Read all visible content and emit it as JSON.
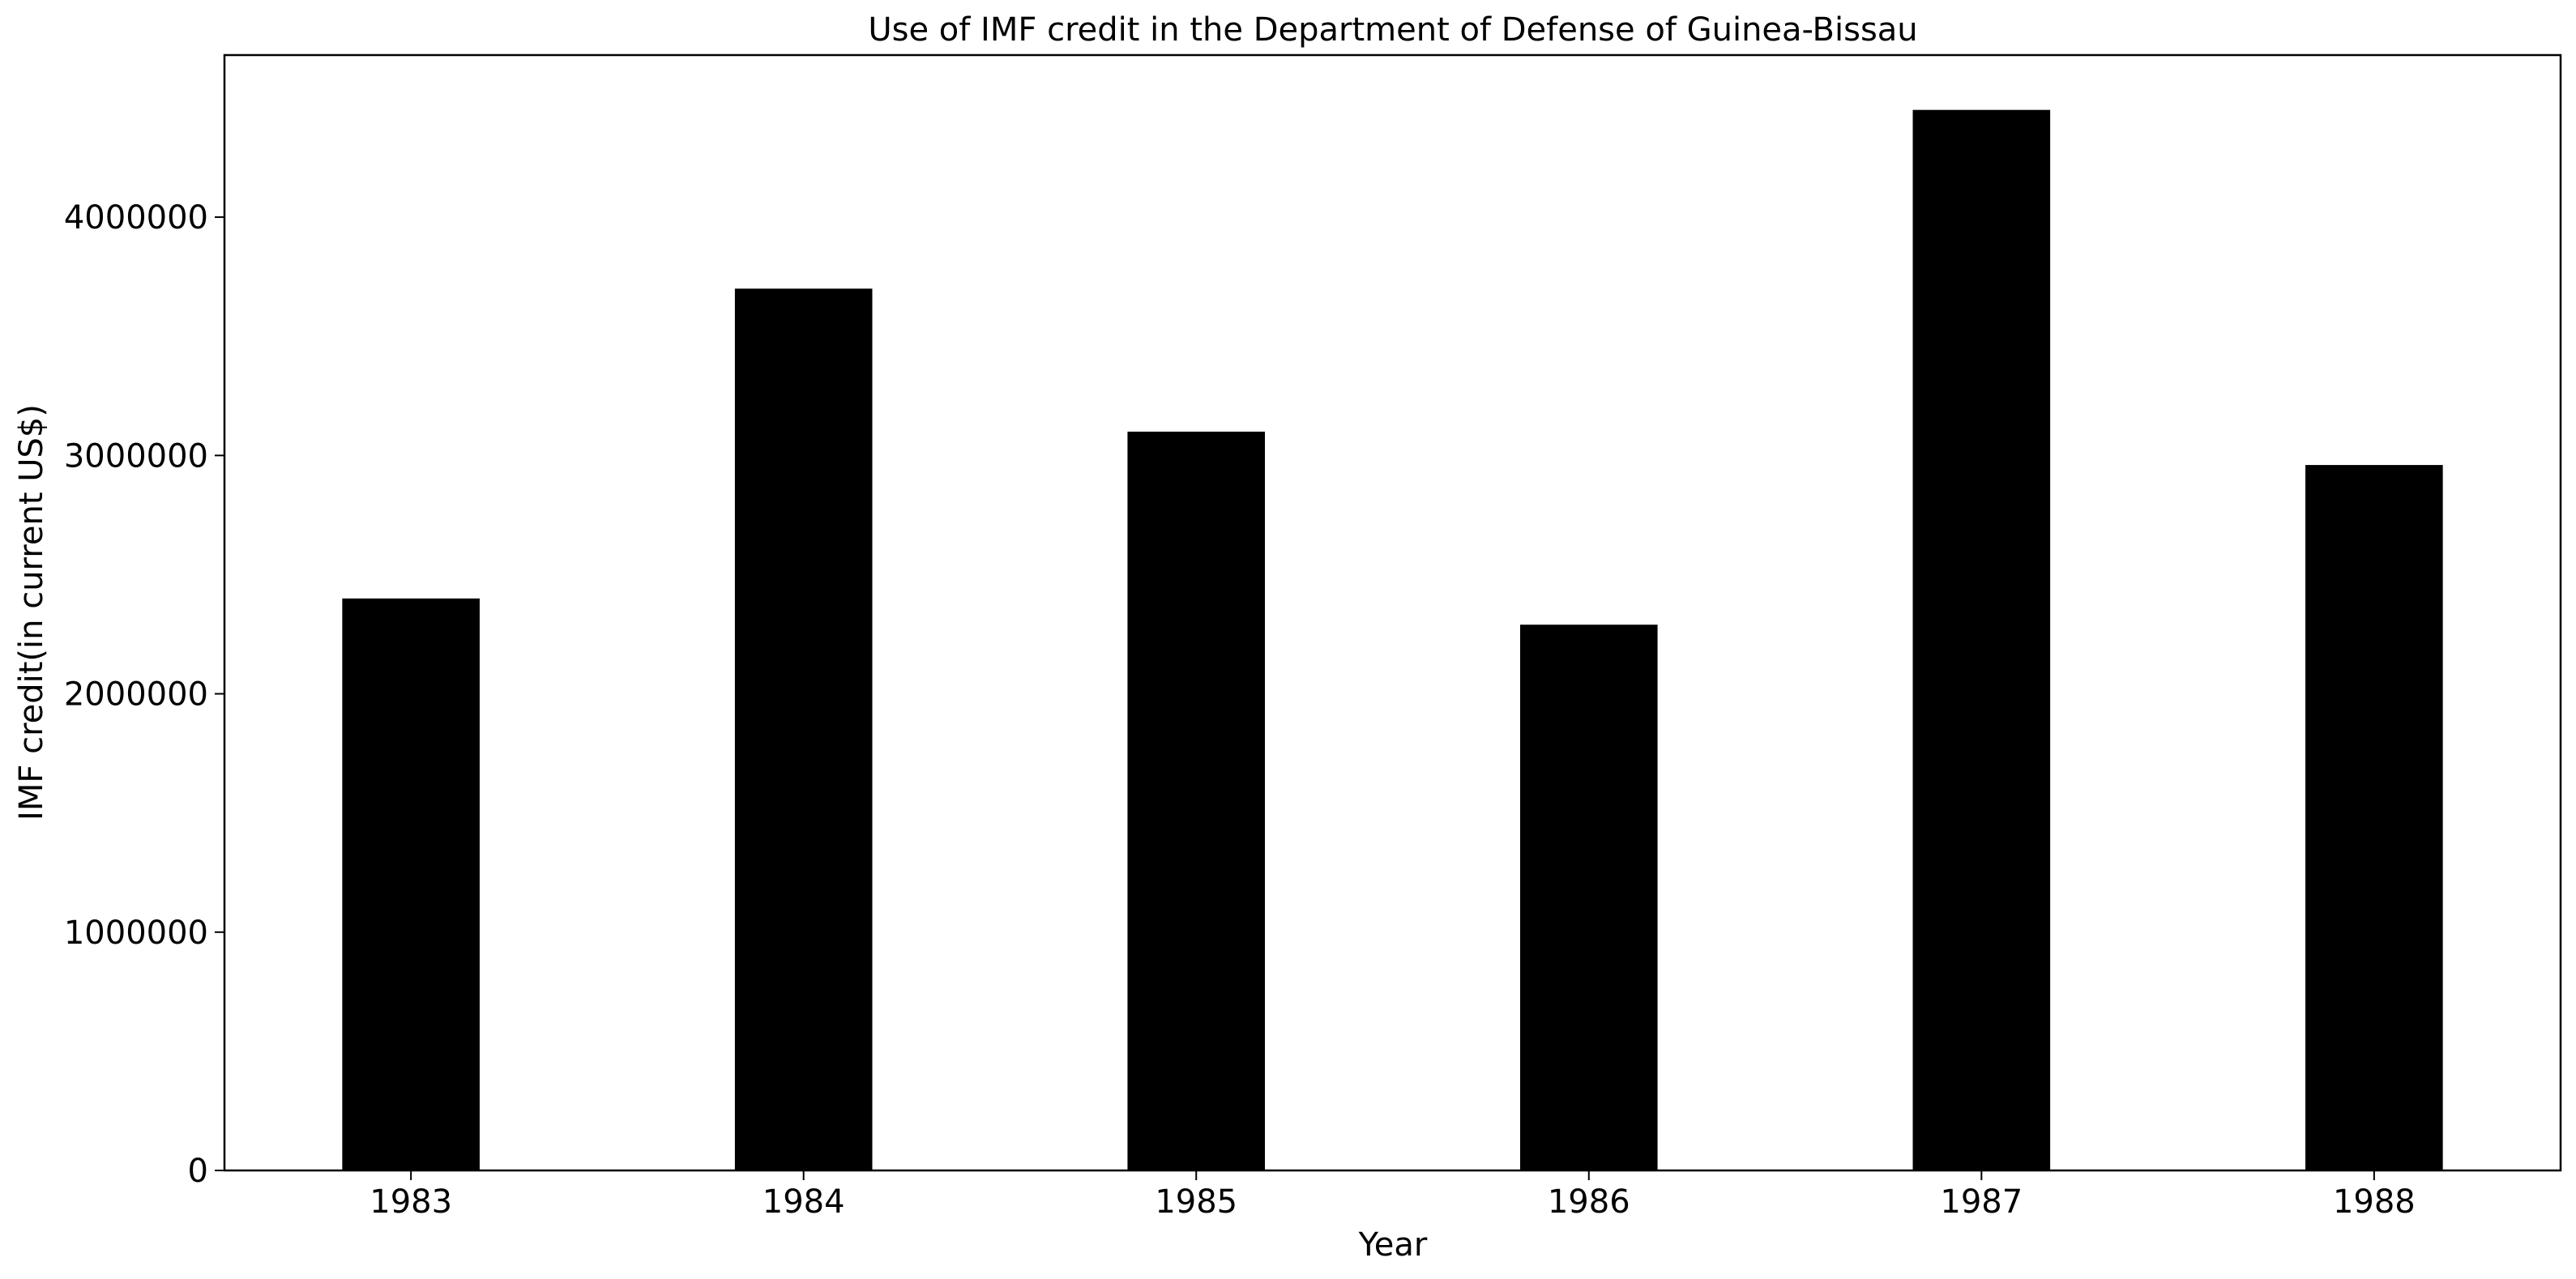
{
  "chart_data": {
    "type": "bar",
    "title": "Use of IMF credit in the Department of Defense of Guinea-Bissau",
    "xlabel": "Year",
    "ylabel": "IMF credit(in current US$)",
    "categories": [
      "1983",
      "1984",
      "1985",
      "1986",
      "1987",
      "1988"
    ],
    "values": [
      2400000,
      3700000,
      3100000,
      2290000,
      4450000,
      2960000
    ],
    "ylim": [
      0,
      4680000
    ],
    "yticks": [
      0,
      1000000,
      2000000,
      3000000,
      4000000
    ],
    "ytick_labels": [
      "0",
      "1000000",
      "2000000",
      "3000000",
      "4000000"
    ],
    "grid": false,
    "legend": "none",
    "bar_color": "#000000"
  }
}
